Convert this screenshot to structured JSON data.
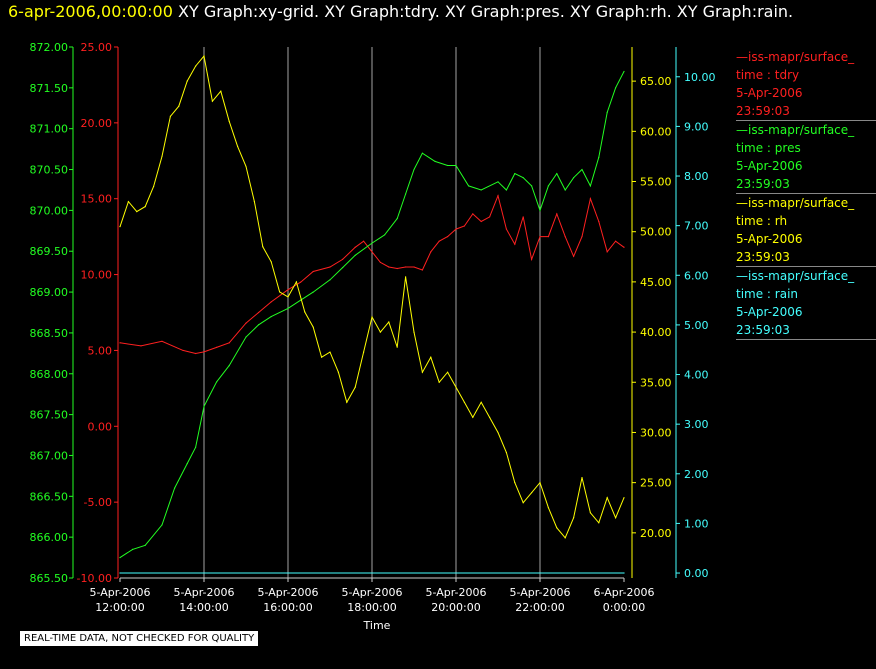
{
  "header": {
    "timestamp": "6-apr-2006,00:00:00",
    "graph_titles": " XY Graph:xy-grid.  XY Graph:tdry.  XY Graph:pres.  XY Graph:rh.  XY Graph:rain."
  },
  "quality_label": "REAL-TIME DATA, NOT CHECKED FOR QUALITY",
  "colors": {
    "tdry": "#ff2020",
    "pres": "#22ff22",
    "rh": "#ffff00",
    "rain": "#44ffff",
    "grid": "#cccccc"
  },
  "legend": [
    {
      "name": "—iss-mapr/surface_",
      "var": "time : tdry",
      "date": "5-Apr-2006",
      "time": "23:59:03",
      "color": "#ff2020"
    },
    {
      "name": "—iss-mapr/surface_",
      "var": "time : pres",
      "date": "5-Apr-2006",
      "time": "23:59:03",
      "color": "#22ff22"
    },
    {
      "name": "—iss-mapr/surface_",
      "var": "time : rh",
      "date": "5-Apr-2006",
      "time": "23:59:03",
      "color": "#ffff00"
    },
    {
      "name": "—iss-mapr/surface_",
      "var": "time : rain",
      "date": "5-Apr-2006",
      "time": "23:59:03",
      "color": "#44ffff"
    }
  ],
  "chart_data": {
    "type": "line",
    "xlabel": "Time",
    "x_ticks": [
      {
        "line1": "5-Apr-2006",
        "line2": "12:00:00",
        "hour": 12
      },
      {
        "line1": "5-Apr-2006",
        "line2": "14:00:00",
        "hour": 14
      },
      {
        "line1": "5-Apr-2006",
        "line2": "16:00:00",
        "hour": 16
      },
      {
        "line1": "5-Apr-2006",
        "line2": "18:00:00",
        "hour": 18
      },
      {
        "line1": "5-Apr-2006",
        "line2": "20:00:00",
        "hour": 20
      },
      {
        "line1": "5-Apr-2006",
        "line2": "22:00:00",
        "hour": 22
      },
      {
        "line1": "6-Apr-2006",
        "line2": "0:00:00",
        "hour": 24
      }
    ],
    "x_range_hours": [
      12,
      24
    ],
    "axes": {
      "pres": {
        "range": [
          865.5,
          872.0
        ],
        "ticks": [
          "865.50",
          "866.00",
          "866.50",
          "867.00",
          "867.50",
          "868.00",
          "868.50",
          "869.00",
          "869.50",
          "870.00",
          "870.50",
          "871.00",
          "871.50",
          "872.00"
        ]
      },
      "tdry": {
        "range": [
          -10,
          25
        ],
        "ticks": [
          "-10.00",
          "-5.00",
          "0.00",
          "5.00",
          "10.00",
          "15.00",
          "20.00",
          "25.00"
        ]
      },
      "rh": {
        "range": [
          15.5,
          68.4
        ],
        "ticks": [
          "20.00",
          "25.00",
          "30.00",
          "35.00",
          "40.00",
          "45.00",
          "50.00",
          "55.00",
          "60.00",
          "65.00"
        ]
      },
      "rain": {
        "range": [
          -0.1,
          10.6
        ],
        "ticks": [
          "0.00",
          "1.00",
          "2.00",
          "3.00",
          "4.00",
          "5.00",
          "6.00",
          "7.00",
          "8.00",
          "9.00",
          "10.00"
        ]
      }
    },
    "grid": "vertical",
    "series": [
      {
        "name": "tdry",
        "axis": "tdry",
        "x": [
          12.0,
          12.5,
          13.0,
          13.5,
          13.8,
          14.0,
          14.3,
          14.6,
          15.0,
          15.3,
          15.6,
          16.0,
          16.3,
          16.6,
          17.0,
          17.3,
          17.6,
          17.8,
          18.0,
          18.2,
          18.4,
          18.6,
          18.8,
          19.0,
          19.2,
          19.4,
          19.6,
          19.8,
          20.0,
          20.2,
          20.4,
          20.6,
          20.8,
          21.0,
          21.2,
          21.4,
          21.6,
          21.8,
          22.0,
          22.2,
          22.4,
          22.6,
          22.8,
          23.0,
          23.2,
          23.4,
          23.6,
          23.8,
          24.0
        ],
        "y": [
          5.5,
          5.3,
          5.6,
          5.0,
          4.8,
          4.9,
          5.2,
          5.5,
          6.8,
          7.5,
          8.2,
          9.0,
          9.5,
          10.2,
          10.5,
          11.0,
          11.8,
          12.2,
          11.5,
          10.8,
          10.5,
          10.4,
          10.5,
          10.5,
          10.3,
          11.5,
          12.2,
          12.5,
          13.0,
          13.2,
          14.0,
          13.5,
          13.8,
          15.2,
          13.0,
          12.0,
          13.8,
          11.0,
          12.5,
          12.5,
          14.0,
          12.5,
          11.2,
          12.5,
          15.0,
          13.5,
          11.5,
          12.2,
          11.8
        ]
      },
      {
        "name": "pres",
        "axis": "pres",
        "x": [
          12.0,
          12.3,
          12.6,
          13.0,
          13.3,
          13.6,
          13.8,
          14.0,
          14.3,
          14.6,
          15.0,
          15.3,
          15.6,
          16.0,
          16.3,
          16.6,
          17.0,
          17.3,
          17.6,
          18.0,
          18.3,
          18.6,
          18.8,
          19.0,
          19.2,
          19.5,
          19.8,
          20.0,
          20.3,
          20.6,
          21.0,
          21.2,
          21.4,
          21.6,
          21.8,
          22.0,
          22.2,
          22.4,
          22.6,
          22.8,
          23.0,
          23.2,
          23.4,
          23.6,
          23.8,
          24.0
        ],
        "y": [
          865.75,
          865.85,
          865.9,
          866.15,
          866.6,
          866.9,
          867.1,
          867.6,
          867.9,
          868.1,
          868.45,
          868.6,
          868.7,
          868.8,
          868.9,
          869.0,
          869.15,
          869.3,
          869.45,
          869.6,
          869.7,
          869.9,
          870.2,
          870.5,
          870.7,
          870.6,
          870.55,
          870.55,
          870.3,
          870.25,
          870.35,
          870.25,
          870.45,
          870.4,
          870.3,
          870.0,
          870.3,
          870.45,
          870.25,
          870.4,
          870.5,
          870.3,
          870.65,
          871.2,
          871.5,
          871.7
        ]
      },
      {
        "name": "rh",
        "axis": "rh",
        "x": [
          12.0,
          12.2,
          12.4,
          12.6,
          12.8,
          13.0,
          13.2,
          13.4,
          13.6,
          13.8,
          14.0,
          14.2,
          14.4,
          14.6,
          14.8,
          15.0,
          15.2,
          15.4,
          15.6,
          15.8,
          16.0,
          16.2,
          16.4,
          16.6,
          16.8,
          17.0,
          17.2,
          17.4,
          17.6,
          17.8,
          18.0,
          18.2,
          18.4,
          18.6,
          18.8,
          19.0,
          19.2,
          19.4,
          19.6,
          19.8,
          20.0,
          20.2,
          20.4,
          20.6,
          20.8,
          21.0,
          21.2,
          21.4,
          21.6,
          21.8,
          22.0,
          22.2,
          22.4,
          22.6,
          22.8,
          23.0,
          23.2,
          23.4,
          23.6,
          23.8,
          24.0
        ],
        "y": [
          50.5,
          53.0,
          52.0,
          52.5,
          54.5,
          57.5,
          61.5,
          62.5,
          65.0,
          66.5,
          67.5,
          63.0,
          64.0,
          61.0,
          58.5,
          56.5,
          53.0,
          48.5,
          47.0,
          44.0,
          43.5,
          45.0,
          42.0,
          40.5,
          37.5,
          38.0,
          36.0,
          33.0,
          34.5,
          38.0,
          41.5,
          40.0,
          41.0,
          38.5,
          45.5,
          40.0,
          36.0,
          37.5,
          35.0,
          36.0,
          34.5,
          33.0,
          31.5,
          33.0,
          31.5,
          30.0,
          28.0,
          25.0,
          23.0,
          24.0,
          25.0,
          22.5,
          20.5,
          19.5,
          21.5,
          25.5,
          22.0,
          21.0,
          23.5,
          21.5,
          23.5
        ]
      },
      {
        "name": "rain",
        "axis": "rain",
        "x": [
          12.0,
          24.0
        ],
        "y": [
          0.0,
          0.0
        ]
      }
    ]
  }
}
